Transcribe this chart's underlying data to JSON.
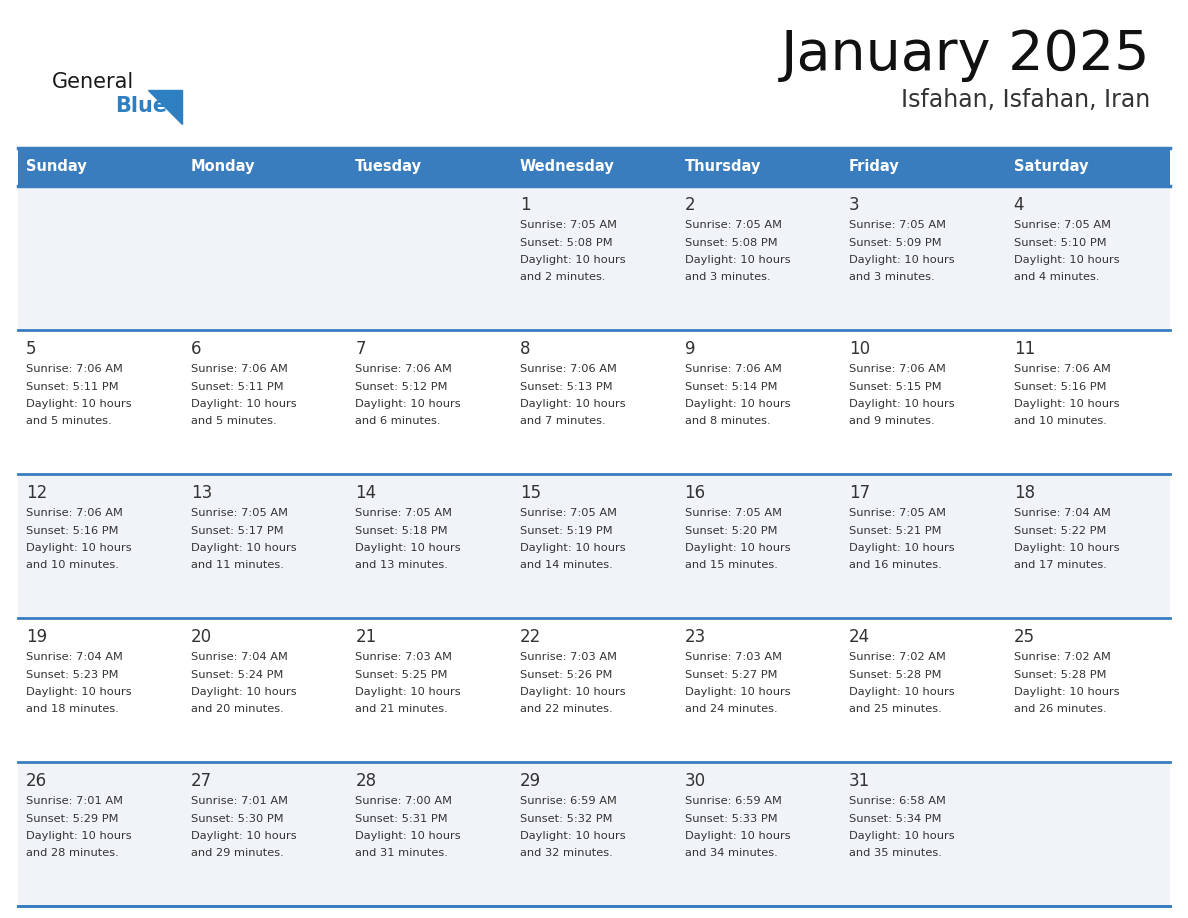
{
  "title": "January 2025",
  "subtitle": "Isfahan, Isfahan, Iran",
  "days_of_week": [
    "Sunday",
    "Monday",
    "Tuesday",
    "Wednesday",
    "Thursday",
    "Friday",
    "Saturday"
  ],
  "header_bg": "#3a7dbf",
  "header_text": "#ffffff",
  "cell_bg_odd": "#f0f4f8",
  "cell_bg_even": "#ffffff",
  "cell_text": "#333333",
  "day_num_color": "#333333",
  "separator_color": "#3a7dbf",
  "logo_general_color": "#1a1a1a",
  "logo_blue_color": "#2e7fc2",
  "calendar": [
    [
      {
        "day": null,
        "sunrise": null,
        "sunset": null,
        "daylight_line1": null,
        "daylight_line2": null
      },
      {
        "day": null,
        "sunrise": null,
        "sunset": null,
        "daylight_line1": null,
        "daylight_line2": null
      },
      {
        "day": null,
        "sunrise": null,
        "sunset": null,
        "daylight_line1": null,
        "daylight_line2": null
      },
      {
        "day": 1,
        "sunrise": "7:05 AM",
        "sunset": "5:08 PM",
        "daylight_line1": "Daylight: 10 hours",
        "daylight_line2": "and 2 minutes."
      },
      {
        "day": 2,
        "sunrise": "7:05 AM",
        "sunset": "5:08 PM",
        "daylight_line1": "Daylight: 10 hours",
        "daylight_line2": "and 3 minutes."
      },
      {
        "day": 3,
        "sunrise": "7:05 AM",
        "sunset": "5:09 PM",
        "daylight_line1": "Daylight: 10 hours",
        "daylight_line2": "and 3 minutes."
      },
      {
        "day": 4,
        "sunrise": "7:05 AM",
        "sunset": "5:10 PM",
        "daylight_line1": "Daylight: 10 hours",
        "daylight_line2": "and 4 minutes."
      }
    ],
    [
      {
        "day": 5,
        "sunrise": "7:06 AM",
        "sunset": "5:11 PM",
        "daylight_line1": "Daylight: 10 hours",
        "daylight_line2": "and 5 minutes."
      },
      {
        "day": 6,
        "sunrise": "7:06 AM",
        "sunset": "5:11 PM",
        "daylight_line1": "Daylight: 10 hours",
        "daylight_line2": "and 5 minutes."
      },
      {
        "day": 7,
        "sunrise": "7:06 AM",
        "sunset": "5:12 PM",
        "daylight_line1": "Daylight: 10 hours",
        "daylight_line2": "and 6 minutes."
      },
      {
        "day": 8,
        "sunrise": "7:06 AM",
        "sunset": "5:13 PM",
        "daylight_line1": "Daylight: 10 hours",
        "daylight_line2": "and 7 minutes."
      },
      {
        "day": 9,
        "sunrise": "7:06 AM",
        "sunset": "5:14 PM",
        "daylight_line1": "Daylight: 10 hours",
        "daylight_line2": "and 8 minutes."
      },
      {
        "day": 10,
        "sunrise": "7:06 AM",
        "sunset": "5:15 PM",
        "daylight_line1": "Daylight: 10 hours",
        "daylight_line2": "and 9 minutes."
      },
      {
        "day": 11,
        "sunrise": "7:06 AM",
        "sunset": "5:16 PM",
        "daylight_line1": "Daylight: 10 hours",
        "daylight_line2": "and 10 minutes."
      }
    ],
    [
      {
        "day": 12,
        "sunrise": "7:06 AM",
        "sunset": "5:16 PM",
        "daylight_line1": "Daylight: 10 hours",
        "daylight_line2": "and 10 minutes."
      },
      {
        "day": 13,
        "sunrise": "7:05 AM",
        "sunset": "5:17 PM",
        "daylight_line1": "Daylight: 10 hours",
        "daylight_line2": "and 11 minutes."
      },
      {
        "day": 14,
        "sunrise": "7:05 AM",
        "sunset": "5:18 PM",
        "daylight_line1": "Daylight: 10 hours",
        "daylight_line2": "and 13 minutes."
      },
      {
        "day": 15,
        "sunrise": "7:05 AM",
        "sunset": "5:19 PM",
        "daylight_line1": "Daylight: 10 hours",
        "daylight_line2": "and 14 minutes."
      },
      {
        "day": 16,
        "sunrise": "7:05 AM",
        "sunset": "5:20 PM",
        "daylight_line1": "Daylight: 10 hours",
        "daylight_line2": "and 15 minutes."
      },
      {
        "day": 17,
        "sunrise": "7:05 AM",
        "sunset": "5:21 PM",
        "daylight_line1": "Daylight: 10 hours",
        "daylight_line2": "and 16 minutes."
      },
      {
        "day": 18,
        "sunrise": "7:04 AM",
        "sunset": "5:22 PM",
        "daylight_line1": "Daylight: 10 hours",
        "daylight_line2": "and 17 minutes."
      }
    ],
    [
      {
        "day": 19,
        "sunrise": "7:04 AM",
        "sunset": "5:23 PM",
        "daylight_line1": "Daylight: 10 hours",
        "daylight_line2": "and 18 minutes."
      },
      {
        "day": 20,
        "sunrise": "7:04 AM",
        "sunset": "5:24 PM",
        "daylight_line1": "Daylight: 10 hours",
        "daylight_line2": "and 20 minutes."
      },
      {
        "day": 21,
        "sunrise": "7:03 AM",
        "sunset": "5:25 PM",
        "daylight_line1": "Daylight: 10 hours",
        "daylight_line2": "and 21 minutes."
      },
      {
        "day": 22,
        "sunrise": "7:03 AM",
        "sunset": "5:26 PM",
        "daylight_line1": "Daylight: 10 hours",
        "daylight_line2": "and 22 minutes."
      },
      {
        "day": 23,
        "sunrise": "7:03 AM",
        "sunset": "5:27 PM",
        "daylight_line1": "Daylight: 10 hours",
        "daylight_line2": "and 24 minutes."
      },
      {
        "day": 24,
        "sunrise": "7:02 AM",
        "sunset": "5:28 PM",
        "daylight_line1": "Daylight: 10 hours",
        "daylight_line2": "and 25 minutes."
      },
      {
        "day": 25,
        "sunrise": "7:02 AM",
        "sunset": "5:28 PM",
        "daylight_line1": "Daylight: 10 hours",
        "daylight_line2": "and 26 minutes."
      }
    ],
    [
      {
        "day": 26,
        "sunrise": "7:01 AM",
        "sunset": "5:29 PM",
        "daylight_line1": "Daylight: 10 hours",
        "daylight_line2": "and 28 minutes."
      },
      {
        "day": 27,
        "sunrise": "7:01 AM",
        "sunset": "5:30 PM",
        "daylight_line1": "Daylight: 10 hours",
        "daylight_line2": "and 29 minutes."
      },
      {
        "day": 28,
        "sunrise": "7:00 AM",
        "sunset": "5:31 PM",
        "daylight_line1": "Daylight: 10 hours",
        "daylight_line2": "and 31 minutes."
      },
      {
        "day": 29,
        "sunrise": "6:59 AM",
        "sunset": "5:32 PM",
        "daylight_line1": "Daylight: 10 hours",
        "daylight_line2": "and 32 minutes."
      },
      {
        "day": 30,
        "sunrise": "6:59 AM",
        "sunset": "5:33 PM",
        "daylight_line1": "Daylight: 10 hours",
        "daylight_line2": "and 34 minutes."
      },
      {
        "day": 31,
        "sunrise": "6:58 AM",
        "sunset": "5:34 PM",
        "daylight_line1": "Daylight: 10 hours",
        "daylight_line2": "and 35 minutes."
      },
      {
        "day": null,
        "sunrise": null,
        "sunset": null,
        "daylight_line1": null,
        "daylight_line2": null
      }
    ]
  ]
}
